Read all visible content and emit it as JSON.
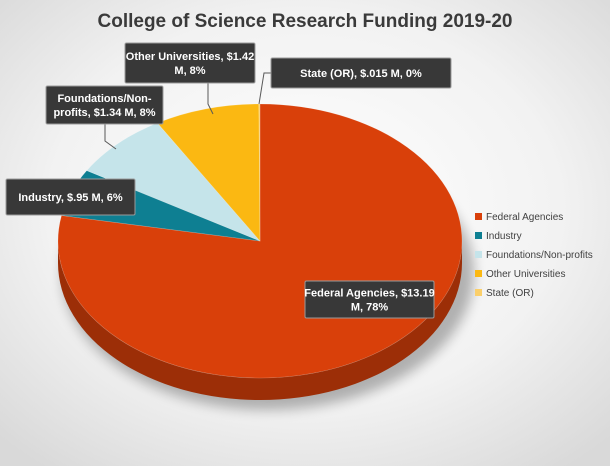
{
  "chart_data": {
    "type": "pie",
    "title": "College of Science Research Funding 2019-20",
    "categories": [
      "Federal Agencies",
      "Industry",
      "Foundations/Non-profits",
      "Other Universities",
      "State (OR)"
    ],
    "values": [
      13.19,
      0.95,
      1.34,
      1.42,
      0.015
    ],
    "data_labels": [
      [
        "Federal Agencies, $13.19",
        "M, 78%"
      ],
      [
        "Industry, $.95 M, 6%"
      ],
      [
        "Foundations/Non-",
        "profits, $1.34 M, 8%"
      ],
      [
        "Other Universities, $1.42",
        "M, 8%"
      ],
      [
        "State (OR), $.015 M, 0%"
      ]
    ],
    "colors": [
      "#D9400A",
      "#0E7F92",
      "#C5E4EA",
      "#FBB812",
      "#FBCF6A"
    ],
    "legend": "right",
    "three_d": true
  }
}
